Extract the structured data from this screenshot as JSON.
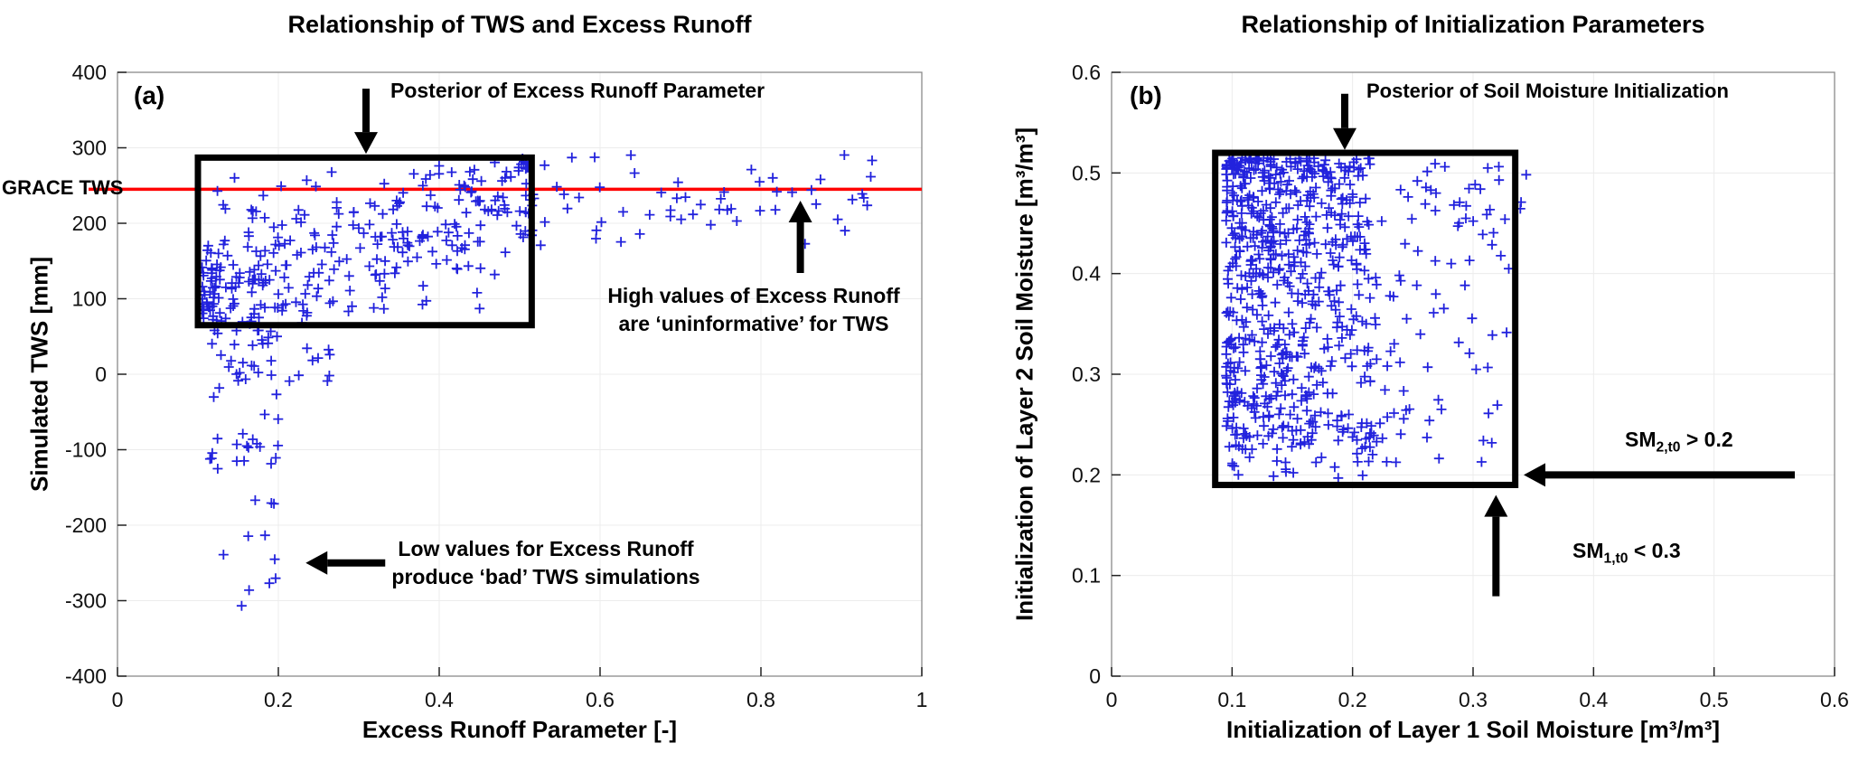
{
  "page": {
    "background": "#ffffff"
  },
  "chart_data": [
    {
      "id": "a",
      "type": "scatter",
      "panel_label": "(a)",
      "title": "Relationship of TWS and Excess Runoff",
      "xlabel": "Excess Runoff Parameter [-]",
      "ylabel": "Simulated TWS [mm]",
      "xlim": [
        0,
        1
      ],
      "ylim": [
        -400,
        400
      ],
      "xtick_values": [
        0,
        0.2,
        0.4,
        0.6,
        0.8,
        1
      ],
      "xtick_labels": [
        "0",
        "0.2",
        "0.4",
        "0.6",
        "0.8",
        "1"
      ],
      "ytick_values": [
        -400,
        -300,
        -200,
        -100,
        0,
        100,
        200,
        300,
        400
      ],
      "ytick_labels": [
        "-400",
        "-300",
        "-200",
        "-100",
        "0",
        "100",
        "200",
        "300",
        "400"
      ],
      "grid": true,
      "marker": {
        "shape": "plus",
        "color": "#2222dd",
        "size": 11
      },
      "reference_line": {
        "label": "GRACE TWS",
        "y": 245,
        "color": "#ff0000"
      },
      "highlight_box": {
        "x0": 0.1,
        "x1": 0.515,
        "y0": 65,
        "y1": 287,
        "color": "#000000"
      },
      "annotations": {
        "posterior": {
          "text": "Posterior of Excess Runoff Parameter"
        },
        "high": {
          "line1": "High values of Excess Runoff",
          "line2": "are ‘uninformative’ for TWS"
        },
        "low": {
          "line1": "Low values for Excess Runoff",
          "line2": "produce ‘bad’ TWS simulations"
        }
      },
      "arrows": [
        {
          "dir": "down",
          "x": 0.309,
          "tip_y": 292,
          "len": 72
        },
        {
          "dir": "up",
          "x": 0.849,
          "tip_y": 230,
          "len": 80
        },
        {
          "dir": "left",
          "y": -250,
          "tip_x": 0.234,
          "len": 88
        }
      ],
      "seed": 1234,
      "point_clusters": [
        {
          "count": 320,
          "x": {
            "min": 0.105,
            "max": 0.52,
            "pow": 1.35
          },
          "y": {
            "mode": "linear",
            "intercept": 40,
            "slope": 420,
            "sd": 55,
            "min": 66,
            "max": 286
          }
        },
        {
          "count": 55,
          "x": {
            "min": 0.115,
            "max": 0.2,
            "pow": 1.4
          },
          "y": {
            "mode": "range",
            "min": -330,
            "max": 60,
            "pow": 2.0,
            "bias": "high"
          }
        },
        {
          "count": 14,
          "x": {
            "min": 0.16,
            "max": 0.27,
            "pow": 1.0
          },
          "y": {
            "mode": "range",
            "min": -15,
            "max": 60,
            "pow": 1.0,
            "bias": "high"
          }
        },
        {
          "count": 58,
          "x": {
            "min": 0.5,
            "max": 0.96,
            "pow": 1.1
          },
          "y": {
            "mode": "linear",
            "intercept": 232,
            "slope": 0,
            "sd": 34,
            "min": 148,
            "max": 302
          }
        }
      ]
    },
    {
      "id": "b",
      "type": "scatter",
      "panel_label": "(b)",
      "title": "Relationship of Initialization Parameters",
      "xlabel": "Initialization of Layer 1 Soil Moisture [m³/m³]",
      "ylabel": "Initialization of Layer 2 Soil Moisture [m³/m³]",
      "xlim": [
        0,
        0.6
      ],
      "ylim": [
        0,
        0.6
      ],
      "xtick_values": [
        0,
        0.1,
        0.2,
        0.3,
        0.4,
        0.5,
        0.6
      ],
      "xtick_labels": [
        "0",
        "0.1",
        "0.2",
        "0.3",
        "0.4",
        "0.5",
        "0.6"
      ],
      "ytick_values": [
        0,
        0.1,
        0.2,
        0.3,
        0.4,
        0.5,
        0.6
      ],
      "ytick_labels": [
        "0",
        "0.1",
        "0.2",
        "0.3",
        "0.4",
        "0.5",
        "0.6"
      ],
      "grid": true,
      "marker": {
        "shape": "plus",
        "color": "#2222dd",
        "size": 11
      },
      "highlight_box": {
        "x0": 0.086,
        "x1": 0.335,
        "y0": 0.19,
        "y1": 0.52,
        "color": "#000000"
      },
      "annotations": {
        "posterior": {
          "text": "Posterior of Soil Moisture Initialization"
        },
        "sm2": {
          "prefix": "SM",
          "sub": "2,t0",
          "suffix": " > 0.2"
        },
        "sm1": {
          "prefix": "SM",
          "sub": "1,t0",
          "suffix": " < 0.3"
        }
      },
      "arrows": [
        {
          "dir": "down",
          "x": 0.1935,
          "tip_y": 0.523,
          "len": 62
        },
        {
          "dir": "left",
          "y": 0.2,
          "tip_x": 0.342,
          "len": 300
        },
        {
          "dir": "up",
          "x": 0.319,
          "tip_y": 0.18,
          "len": 112
        }
      ],
      "seed": 99,
      "point_clusters": [
        {
          "count": 520,
          "x": {
            "min": 0.095,
            "max": 0.215,
            "pow": 1.5
          },
          "y": {
            "mode": "range",
            "min": 0.225,
            "max": 0.515,
            "pow": 1.45,
            "bias": "high"
          }
        },
        {
          "count": 210,
          "x": {
            "min": 0.1,
            "max": 0.33,
            "pow": 1.35
          },
          "y": {
            "mode": "range",
            "min": 0.21,
            "max": 0.51,
            "pow": 1.2,
            "bias": "high"
          }
        },
        {
          "count": 45,
          "x": {
            "min": 0.1,
            "max": 0.24,
            "pow": 1.2
          },
          "y": {
            "mode": "range",
            "min": 0.195,
            "max": 0.265,
            "pow": 1.0,
            "bias": "high"
          }
        },
        {
          "count": 8,
          "x": {
            "min": 0.3,
            "max": 0.345,
            "pow": 1.0
          },
          "y": {
            "mode": "range",
            "min": 0.4,
            "max": 0.5,
            "pow": 1.0,
            "bias": "high"
          }
        }
      ]
    }
  ]
}
